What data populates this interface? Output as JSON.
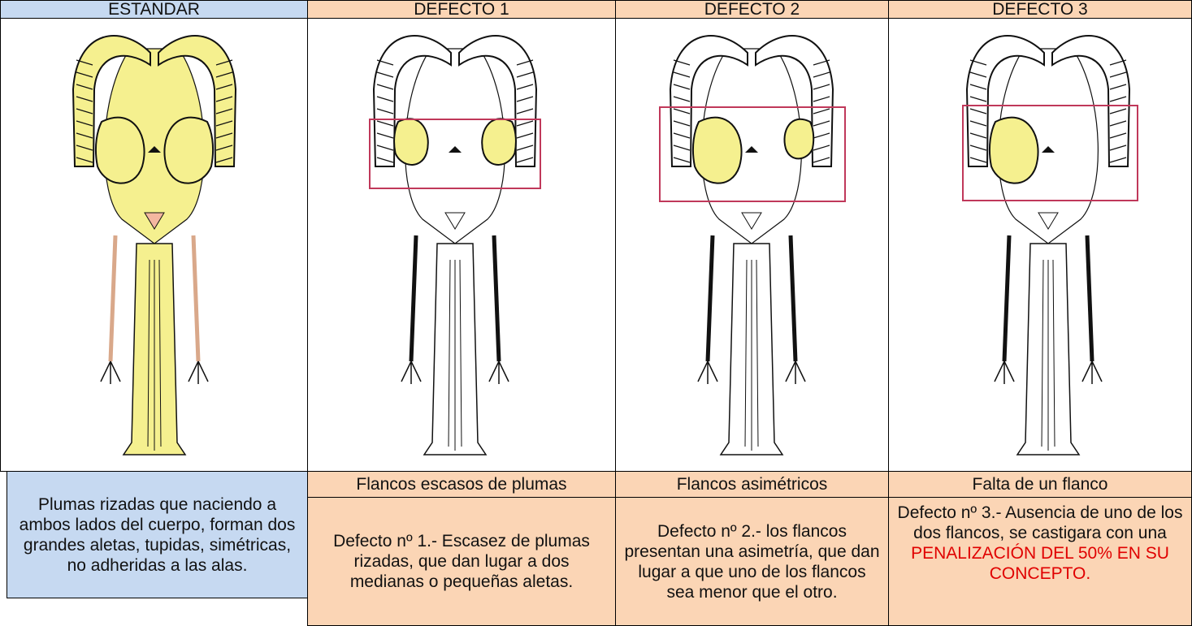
{
  "table": {
    "columns": [
      {
        "header": "ESTANDAR",
        "description": "Plumas rizadas que naciendo a ambos lados del cuerpo, forman dos grandes aletas,  tupidas, simétricas, no adheridas a las alas."
      },
      {
        "header": "DEFECTO 1",
        "label": "Flancos escasos de plumas",
        "description": "Defecto nº 1.- Escasez de plumas rizadas, que dan lugar a dos medianas o pequeñas aletas."
      },
      {
        "header": "DEFECTO 2",
        "label": "Flancos asimétricos",
        "description": "Defecto nº 2.- los flancos presentan una asimetría, que dan lugar a que uno de los flancos sea menor que el otro."
      },
      {
        "header": "DEFECTO 3",
        "label": "Falta de un flanco",
        "description": "Defecto nº 3.- Ausencia de uno de los dos flancos, se castigara con una",
        "description_highlight": "PENALIZACIÓN DEL 50% EN SU CONCEPTO."
      }
    ]
  }
}
